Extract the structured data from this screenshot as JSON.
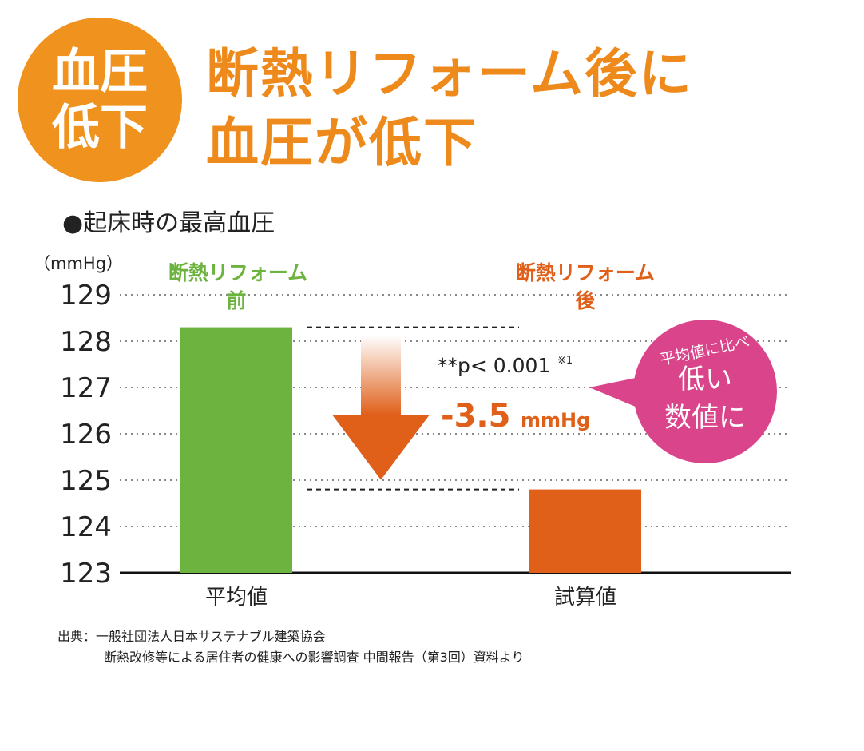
{
  "badge": {
    "line1": "血圧",
    "line2": "低下"
  },
  "headline": {
    "line1": "断熱リフォーム後に",
    "line2": "血圧が低下"
  },
  "subtitle": "●起床時の最高血圧",
  "unit": "（mmHg）",
  "source": {
    "line1": "出典：一般社団法人日本サステナブル建築協会",
    "line2": "断熱改修等による居住者の健康への影響調査 中間報告（第3回）資料より"
  },
  "colors": {
    "before": "#6db33f",
    "after": "#e0601a",
    "accent": "#ee8a1c",
    "bubble": "#d9448a"
  },
  "chart_data": {
    "type": "bar",
    "categories": [
      "平均値",
      "試算値"
    ],
    "values": [
      128.3,
      124.8
    ],
    "bar_headers": [
      {
        "line1": "断熱リフォーム",
        "line2": "前"
      },
      {
        "line1": "断熱リフォーム",
        "line2": "後"
      }
    ],
    "yticks": [
      123,
      124,
      125,
      126,
      127,
      128,
      129
    ],
    "ylim": [
      123,
      129
    ],
    "grid": true,
    "annotation": {
      "pvalue": "**p< 0.001",
      "footnote_mark": "※1",
      "difference": "-3.5",
      "difference_unit": "mmHg",
      "bubble": {
        "line1": "平均値に比べ",
        "line2": "低い",
        "line3": "数値に"
      }
    }
  }
}
